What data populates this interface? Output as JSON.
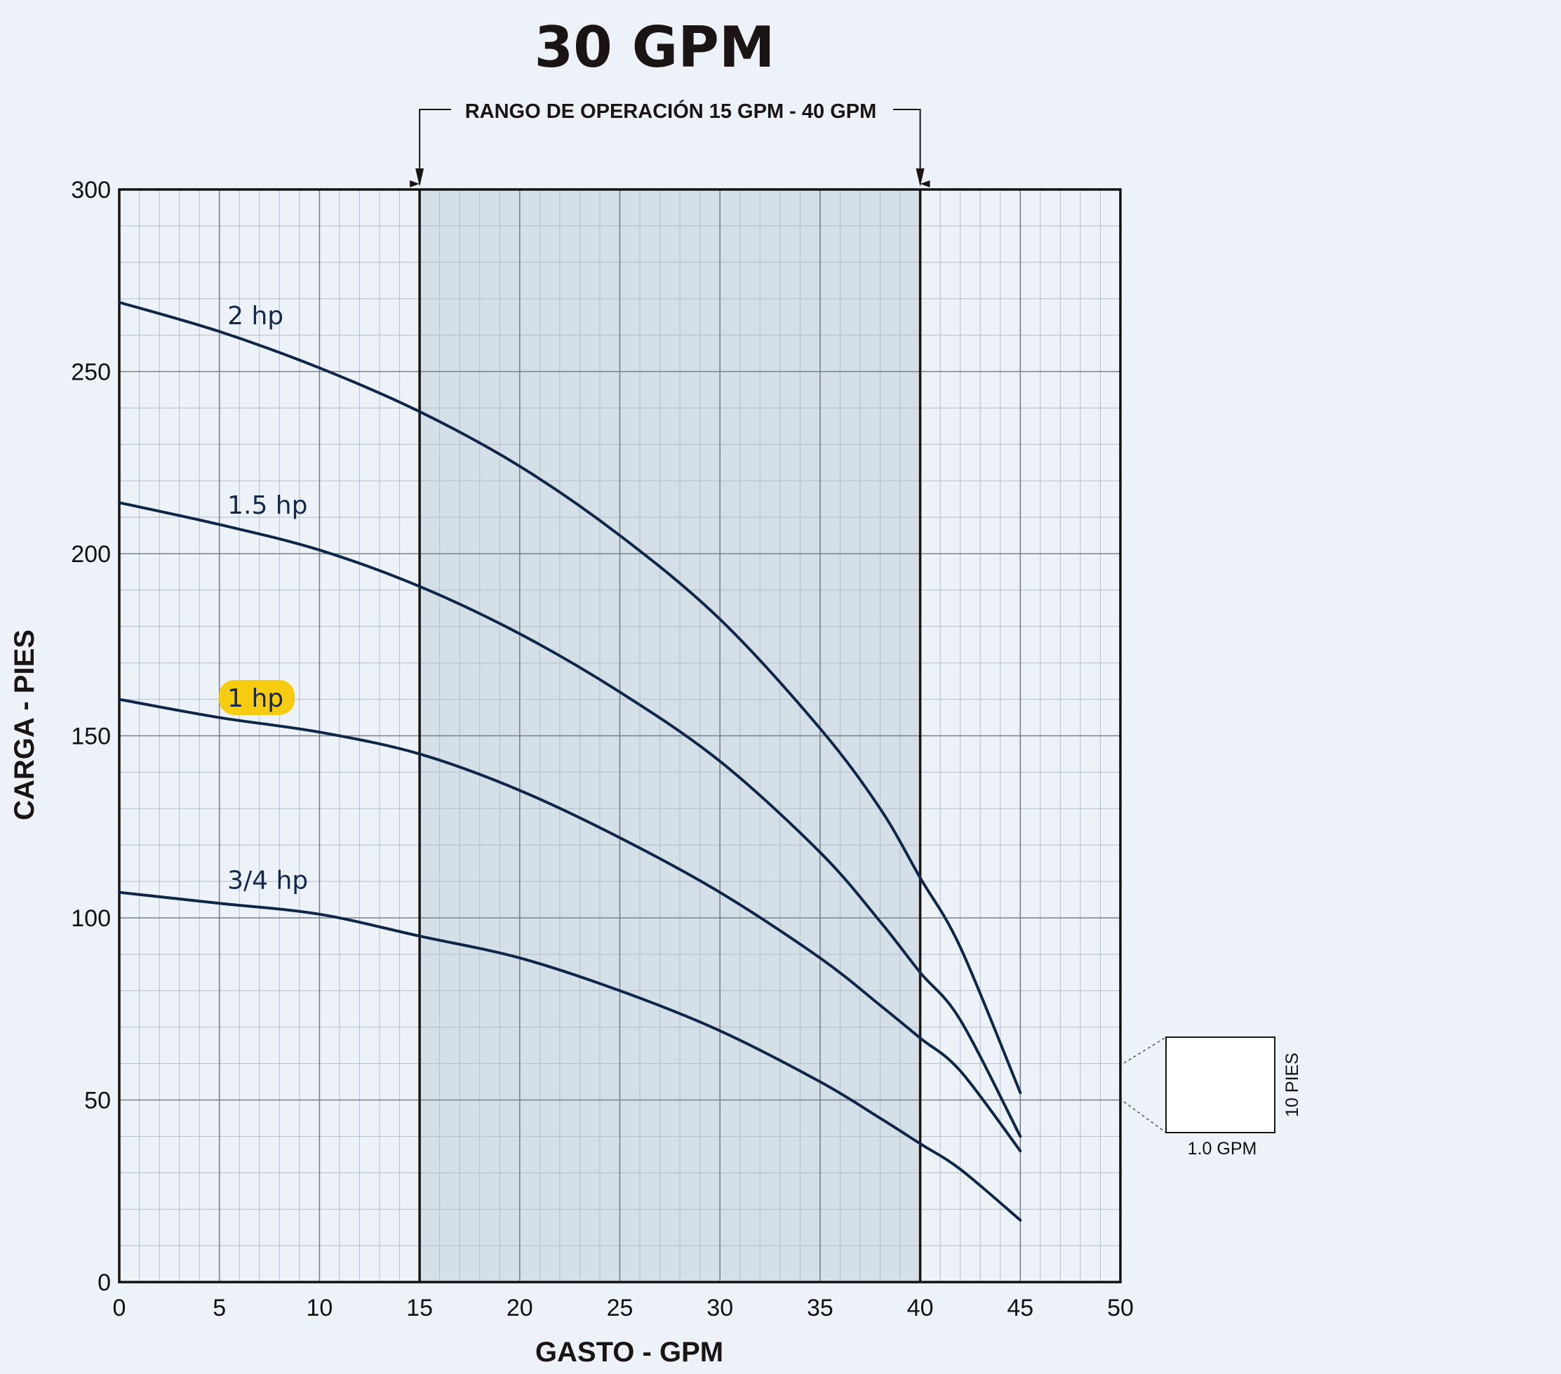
{
  "chart_data": {
    "type": "line",
    "title": "30 GPM",
    "operating_range_label": "RANGO DE OPERACIÓN 15 GPM - 40 GPM",
    "operating_range": [
      15,
      40
    ],
    "xlabel": "GASTO - GPM",
    "ylabel": "CARGA - PIES",
    "xlim": [
      0,
      50
    ],
    "ylim": [
      0,
      300
    ],
    "x_ticks": [
      "0",
      "5",
      "10",
      "15",
      "20",
      "25",
      "30",
      "35",
      "40",
      "45",
      "50"
    ],
    "y_ticks": [
      "0",
      "50",
      "100",
      "150",
      "200",
      "250",
      "300"
    ],
    "grid": true,
    "scale_box": {
      "x_label": "1.0 GPM",
      "y_label": "10 PIES"
    },
    "highlight_color": "#f7cc10",
    "line_color": "#0e2648",
    "series": [
      {
        "name": "2 hp",
        "highlighted": false,
        "label_at": [
          5.4,
          263
        ],
        "x": [
          0,
          5,
          10,
          15,
          20,
          25,
          30,
          35,
          38,
          40,
          42,
          45
        ],
        "y": [
          269,
          261,
          251,
          239,
          224,
          205,
          182,
          152,
          130,
          111,
          92,
          52
        ]
      },
      {
        "name": "1.5 hp",
        "highlighted": false,
        "label_at": [
          5.4,
          211
        ],
        "x": [
          0,
          5,
          10,
          15,
          20,
          25,
          30,
          35,
          38,
          40,
          42,
          45
        ],
        "y": [
          214,
          208,
          201,
          191,
          178,
          162,
          143,
          118,
          99,
          85,
          72,
          40
        ]
      },
      {
        "name": "1 hp",
        "highlighted": true,
        "label_at": [
          5.4,
          158
        ],
        "x": [
          0,
          5,
          10,
          15,
          20,
          25,
          30,
          35,
          38,
          40,
          42,
          45
        ],
        "y": [
          160,
          155,
          151,
          145,
          135,
          122,
          107,
          89,
          76,
          67,
          58,
          36
        ]
      },
      {
        "name": "3/4 hp",
        "highlighted": false,
        "label_at": [
          5.4,
          108
        ],
        "x": [
          0,
          5,
          10,
          15,
          20,
          25,
          30,
          35,
          38,
          40,
          42,
          45
        ],
        "y": [
          107,
          104,
          101,
          95,
          89,
          80,
          69,
          55,
          45,
          38,
          31,
          17
        ]
      }
    ]
  }
}
